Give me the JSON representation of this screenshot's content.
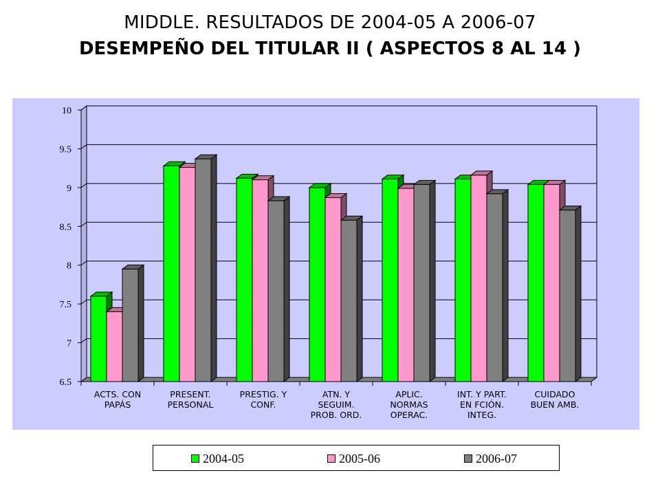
{
  "title": {
    "line1": "MIDDLE. RESULTADOS DE 2004-05 A 2006-07",
    "line2": "DESEMPEÑO DEL TITULAR II ( ASPECTOS 8 AL 14 )"
  },
  "chart_data": {
    "type": "bar",
    "title": "",
    "xlabel": "",
    "ylabel": "",
    "ylim": [
      6.5,
      10
    ],
    "yticks": [
      "6.5",
      "7",
      "7.5",
      "8",
      "8.5",
      "9",
      "9.5",
      "10"
    ],
    "grid": true,
    "legend_position": "bottom",
    "categories": [
      [
        "ACTS. CON",
        "PAPÁS"
      ],
      [
        "PRESENT.",
        "PERSONAL"
      ],
      [
        "PRESTIG. Y",
        "CONF."
      ],
      [
        "ATN. Y",
        "SEGUIM.",
        "PROB. ORD."
      ],
      [
        "APLIC.",
        "NORMAS",
        "OPERAC."
      ],
      [
        "INT. Y PART.",
        "EN FCIÓN.",
        "INTEG."
      ],
      [
        "CUIDADO",
        "BUEN AMB."
      ]
    ],
    "series": [
      {
        "name": "2004-05",
        "color": "#00ff00",
        "values": [
          7.6,
          9.28,
          9.12,
          9.0,
          9.11,
          9.11,
          9.04
        ]
      },
      {
        "name": "2005-06",
        "color": "#ff99cc",
        "values": [
          7.4,
          9.26,
          9.1,
          8.87,
          8.99,
          9.16,
          9.04
        ]
      },
      {
        "name": "2006-07",
        "color": "#808080",
        "values": [
          7.95,
          9.37,
          8.83,
          8.58,
          9.04,
          8.92,
          8.71
        ]
      }
    ],
    "plot_background": "#ccccff"
  }
}
